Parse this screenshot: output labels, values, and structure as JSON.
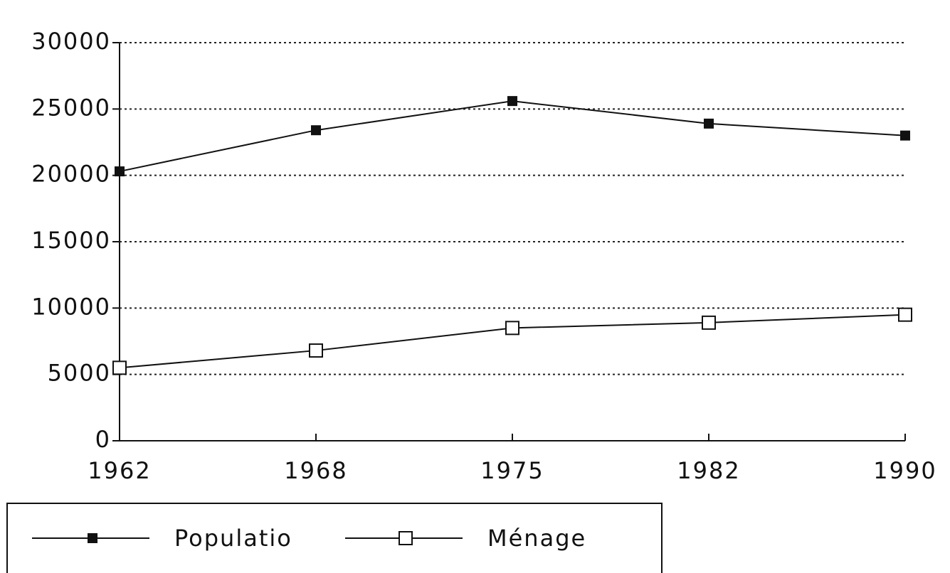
{
  "chart_data": {
    "type": "line",
    "categories": [
      "1962",
      "1968",
      "1975",
      "1982",
      "1990"
    ],
    "series": [
      {
        "name": "Populatio",
        "color": "#111111",
        "marker": "filled-square",
        "values": [
          20300,
          23400,
          25600,
          23900,
          23000
        ]
      },
      {
        "name": "Ménage",
        "color": "#111111",
        "marker": "open-square",
        "values": [
          5500,
          6800,
          8500,
          8900,
          9500
        ]
      }
    ],
    "ylim": [
      0,
      30000
    ],
    "yticks": [
      0,
      5000,
      10000,
      15000,
      20000,
      25000,
      30000
    ],
    "grid": true
  }
}
